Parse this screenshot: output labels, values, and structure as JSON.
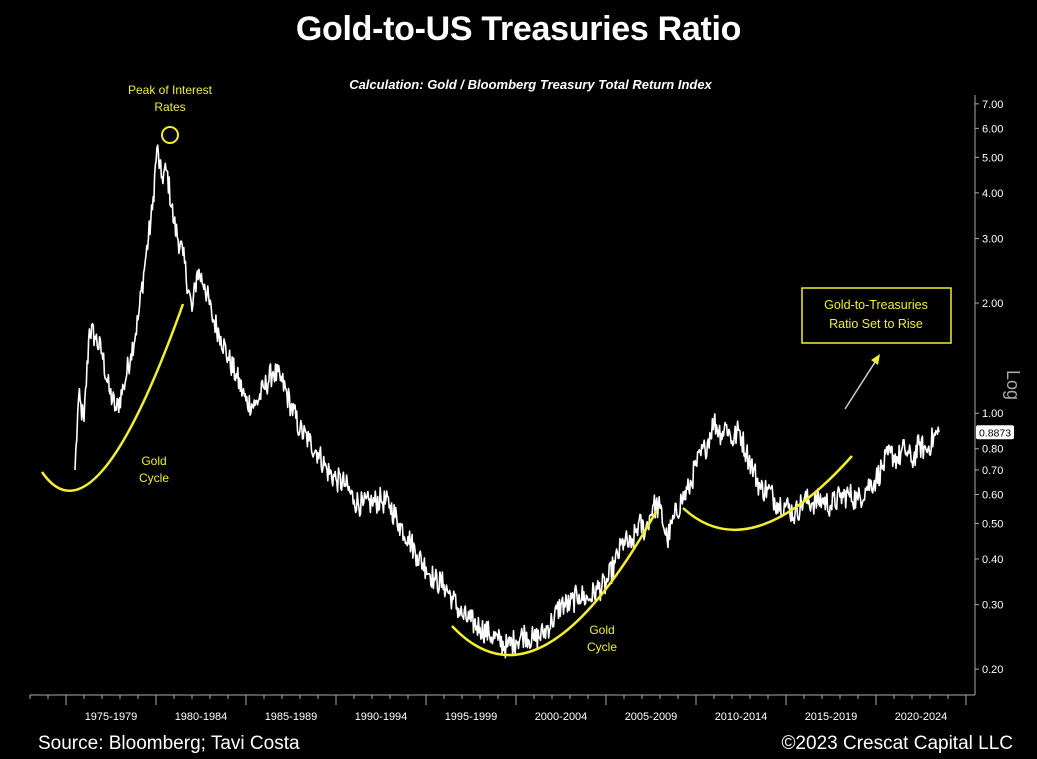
{
  "header": {
    "title": "Gold-to-US Treasuries Ratio",
    "subtitle": "Calculation: Gold / Bloomberg Treasury Total Return Index"
  },
  "footer": {
    "source": "Source: Bloomberg; Tavi Costa",
    "copyright": "©2023 Crescat Capital LLC"
  },
  "colors": {
    "background": "#000000",
    "line": "#ffffff",
    "annotation": "#f2ee30",
    "text": "#ffffff"
  },
  "chart_data": {
    "type": "line",
    "title": "Gold-to-US Treasuries Ratio",
    "subtitle": "Calculation: Gold / Bloomberg Treasury Total Return Index",
    "yscale": "log",
    "yaxis_side": "right",
    "yaxis_label": "Log",
    "ylim": [
      0.17,
      7.4
    ],
    "xlim": [
      1973.0,
      2025.5
    ],
    "yticks": [
      7.0,
      6.0,
      5.0,
      4.0,
      3.0,
      2.0,
      1.0,
      0.8,
      0.7,
      0.6,
      0.5,
      0.4,
      0.3,
      0.2
    ],
    "ytick_labels": [
      "7.00",
      "6.00",
      "5.00",
      "4.00",
      "3.00",
      "2.00",
      "1.00",
      "0.80",
      "0.70",
      "0.60",
      "0.50",
      "0.40",
      "0.30",
      "0.20"
    ],
    "xtick_labels": [
      "1975-1979",
      "1980-1984",
      "1985-1989",
      "1990-1994",
      "1995-1999",
      "2000-2004",
      "2005-2009",
      "2010-2014",
      "2015-2019",
      "2020-2024"
    ],
    "last_value_label": "0.8873",
    "grid": false,
    "series": [
      {
        "x": [
          1975.5,
          1975.7,
          1976.0,
          1976.3,
          1976.6,
          1977.0,
          1977.4,
          1977.8,
          1978.2,
          1978.6,
          1979.0,
          1979.4,
          1979.8,
          1980.05,
          1980.3,
          1980.6,
          1981.0,
          1981.5,
          1982.0,
          1982.3,
          1982.7,
          1983.1,
          1983.6,
          1984.0,
          1984.5,
          1985.0,
          1985.5,
          1986.0,
          1986.5,
          1987.0,
          1987.5,
          1988.0,
          1988.5,
          1989.0,
          1989.5,
          1990.0,
          1990.5,
          1991.0,
          1991.5,
          1992.0,
          1992.5,
          1993.0,
          1993.5,
          1994.0,
          1994.5,
          1995.0,
          1995.5,
          1996.0,
          1996.5,
          1997.0,
          1997.5,
          1998.0,
          1998.5,
          1999.0,
          1999.5,
          2000.0,
          2000.5,
          2001.0,
          2001.5,
          2002.0,
          2002.5,
          2003.0,
          2003.5,
          2004.0,
          2004.5,
          2005.0,
          2005.5,
          2006.0,
          2006.4,
          2006.8,
          2007.2,
          2007.6,
          2008.0,
          2008.4,
          2008.8,
          2009.2,
          2009.6,
          2010.0,
          2010.5,
          2011.0,
          2011.4,
          2011.7,
          2012.0,
          2012.4,
          2012.8,
          2013.2,
          2013.6,
          2014.0,
          2014.5,
          2015.0,
          2015.5,
          2016.0,
          2016.5,
          2017.0,
          2017.5,
          2018.0,
          2018.5,
          2019.0,
          2019.5,
          2020.0,
          2020.4,
          2020.8,
          2021.2,
          2021.6,
          2022.0,
          2022.4,
          2022.8,
          2023.2,
          2023.5
        ],
        "y": [
          0.7,
          1.1,
          0.95,
          1.7,
          1.62,
          1.46,
          1.15,
          1.02,
          1.18,
          1.45,
          1.8,
          2.6,
          3.6,
          5.3,
          4.4,
          4.6,
          3.3,
          2.7,
          1.9,
          2.45,
          2.25,
          1.85,
          1.62,
          1.42,
          1.25,
          1.08,
          1.05,
          1.17,
          1.3,
          1.22,
          1.05,
          0.9,
          0.84,
          0.78,
          0.7,
          0.66,
          0.64,
          0.58,
          0.56,
          0.57,
          0.58,
          0.56,
          0.5,
          0.46,
          0.41,
          0.38,
          0.35,
          0.34,
          0.31,
          0.28,
          0.27,
          0.26,
          0.25,
          0.24,
          0.23,
          0.24,
          0.25,
          0.24,
          0.25,
          0.27,
          0.3,
          0.3,
          0.32,
          0.31,
          0.33,
          0.34,
          0.39,
          0.45,
          0.43,
          0.5,
          0.48,
          0.56,
          0.55,
          0.45,
          0.52,
          0.58,
          0.62,
          0.72,
          0.8,
          0.95,
          0.88,
          0.93,
          0.84,
          0.9,
          0.78,
          0.7,
          0.62,
          0.62,
          0.57,
          0.56,
          0.53,
          0.58,
          0.57,
          0.58,
          0.56,
          0.59,
          0.6,
          0.58,
          0.63,
          0.66,
          0.72,
          0.78,
          0.75,
          0.8,
          0.74,
          0.82,
          0.79,
          0.86,
          0.8873
        ]
      }
    ],
    "annotations": [
      {
        "text": "Peak of Interest Rates",
        "lines": [
          "Peak of Interest",
          "Rates"
        ]
      },
      {
        "text": "Gold Cycle",
        "lines": [
          "Gold",
          "Cycle"
        ]
      },
      {
        "text": "Gold Cycle",
        "lines": [
          "Gold",
          "Cycle"
        ]
      },
      {
        "text": "Gold-to-Treasuries Ratio Set to Rise",
        "lines": [
          "Gold-to-Treasuries",
          "Ratio Set to Rise"
        ]
      }
    ]
  }
}
